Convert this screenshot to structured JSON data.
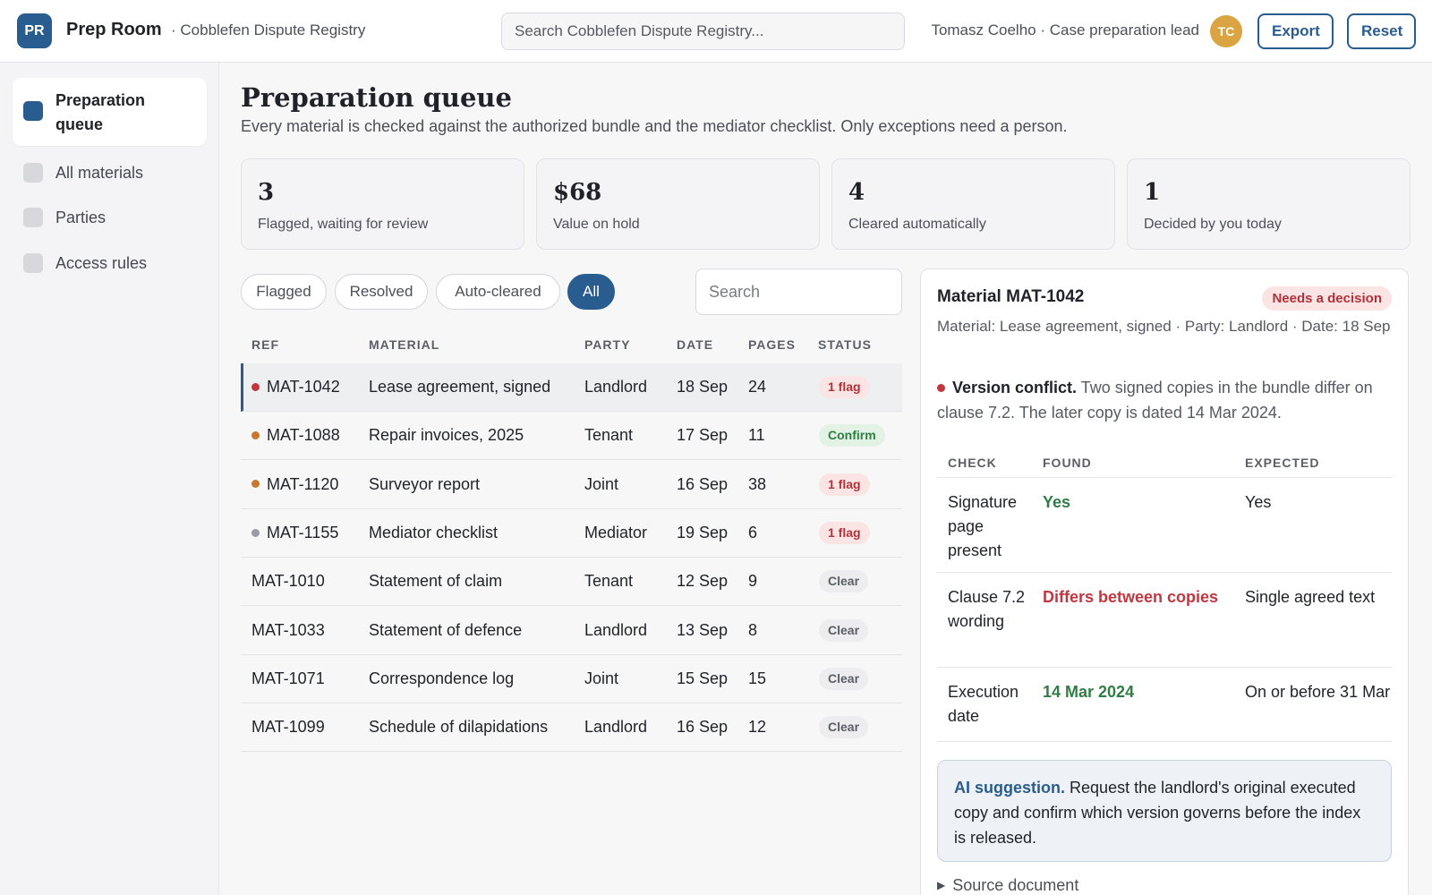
{
  "header": {
    "logo": "PR",
    "app_name": "Prep Room",
    "registry": "· Cobblefen Dispute Registry",
    "search_placeholder": "Search Cobblefen Dispute Registry...",
    "user": "Tomasz Coelho · Case preparation lead",
    "avatar": "TC",
    "export_label": "Export",
    "reset_label": "Reset"
  },
  "sidebar": {
    "items": [
      {
        "label": "Preparation queue",
        "active": true
      },
      {
        "label": "All materials",
        "active": false
      },
      {
        "label": "Parties",
        "active": false
      },
      {
        "label": "Access rules",
        "active": false
      }
    ]
  },
  "main": {
    "title": "Preparation queue",
    "subtitle": "Every material is checked against the authorized bundle and the mediator checklist. Only exceptions need a person.",
    "stats": [
      {
        "value": "3",
        "label": "Flagged, waiting for review"
      },
      {
        "value": "$68",
        "label": "Value on hold"
      },
      {
        "value": "4",
        "label": "Cleared automatically"
      },
      {
        "value": "1",
        "label": "Decided by you today"
      }
    ],
    "filters": [
      "Flagged",
      "Resolved",
      "Auto-cleared",
      "All"
    ],
    "active_filter": "All",
    "table_search_placeholder": "Search",
    "columns": [
      "REF",
      "MATERIAL",
      "PARTY",
      "DATE",
      "PAGES",
      "STATUS"
    ],
    "rows": [
      {
        "ref": "MAT-1042",
        "material": "Lease agreement, signed",
        "party": "Landlord",
        "date": "18 Sep",
        "pages": "24",
        "status": "1 flag",
        "status_kind": "flag",
        "dot": "#c2373f",
        "selected": true
      },
      {
        "ref": "MAT-1088",
        "material": "Repair invoices, 2025",
        "party": "Tenant",
        "date": "17 Sep",
        "pages": "11",
        "status": "Confirm",
        "status_kind": "confirm",
        "dot": "#c8772c",
        "selected": false
      },
      {
        "ref": "MAT-1120",
        "material": "Surveyor report",
        "party": "Joint",
        "date": "16 Sep",
        "pages": "38",
        "status": "1 flag",
        "status_kind": "flag",
        "dot": "#c8772c",
        "selected": false
      },
      {
        "ref": "MAT-1155",
        "material": "Mediator checklist",
        "party": "Mediator",
        "date": "19 Sep",
        "pages": "6",
        "status": "1 flag",
        "status_kind": "flag",
        "dot": "#9a9ca3",
        "selected": false
      },
      {
        "ref": "MAT-1010",
        "material": "Statement of claim",
        "party": "Tenant",
        "date": "12 Sep",
        "pages": "9",
        "status": "Clear",
        "status_kind": "clear",
        "dot": null,
        "selected": false
      },
      {
        "ref": "MAT-1033",
        "material": "Statement of defence",
        "party": "Landlord",
        "date": "13 Sep",
        "pages": "8",
        "status": "Clear",
        "status_kind": "clear",
        "dot": null,
        "selected": false
      },
      {
        "ref": "MAT-1071",
        "material": "Correspondence log",
        "party": "Joint",
        "date": "15 Sep",
        "pages": "15",
        "status": "Clear",
        "status_kind": "clear",
        "dot": null,
        "selected": false
      },
      {
        "ref": "MAT-1099",
        "material": "Schedule of dilapidations",
        "party": "Landlord",
        "date": "16 Sep",
        "pages": "12",
        "status": "Clear",
        "status_kind": "clear",
        "dot": null,
        "selected": false
      }
    ]
  },
  "detail": {
    "title": "Material MAT-1042",
    "badge": "Needs a decision",
    "meta": "Material: Lease agreement, signed · Party: Landlord · Date: 18 Sep",
    "issue_title": "Version conflict.",
    "issue_text": "Two signed copies in the bundle differ on clause 7.2. The later copy is dated 14 Mar 2024.",
    "check_columns": [
      "CHECK",
      "FOUND",
      "EXPECTED"
    ],
    "checks": [
      {
        "check": "Signature page present",
        "found": "Yes",
        "found_ok": true,
        "expected": "Yes"
      },
      {
        "check": "Clause 7.2 wording",
        "found": "Differs between copies",
        "found_ok": false,
        "expected": "Single agreed text"
      },
      {
        "check": "Execution date",
        "found": "14 Mar 2024",
        "found_ok": true,
        "expected": "On or before 31 Mar"
      }
    ],
    "ai_label": "AI suggestion.",
    "ai_text": "Request the landlord's original executed copy and confirm which version governs before the index is released.",
    "source_label": "Source document"
  }
}
